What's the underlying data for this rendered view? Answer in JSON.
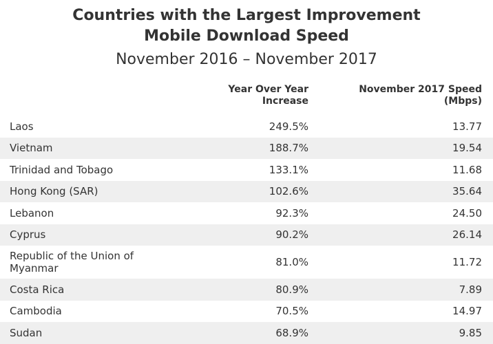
{
  "title": {
    "line1": "Countries with the Largest Improvement",
    "line2": "Mobile Download Speed",
    "subtitle": "November 2016 – November 2017"
  },
  "table": {
    "headers": {
      "increase_line1": "Year Over Year",
      "increase_line2": "Increase",
      "speed_line1": "November 2017 Speed",
      "speed_line2": "(Mbps)"
    },
    "rows": [
      {
        "country": "Laos",
        "increase": "249.5%",
        "speed": "13.77"
      },
      {
        "country": "Vietnam",
        "increase": "188.7%",
        "speed": "19.54"
      },
      {
        "country": "Trinidad and Tobago",
        "increase": "133.1%",
        "speed": "11.68"
      },
      {
        "country": "Hong Kong (SAR)",
        "increase": "102.6%",
        "speed": "35.64"
      },
      {
        "country": "Lebanon",
        "increase": "92.3%",
        "speed": "24.50"
      },
      {
        "country": "Cyprus",
        "increase": "90.2%",
        "speed": "26.14"
      },
      {
        "country": "Republic of the Union of Myanmar",
        "increase": "81.0%",
        "speed": "11.72"
      },
      {
        "country": "Costa Rica",
        "increase": "80.9%",
        "speed": "7.89"
      },
      {
        "country": "Cambodia",
        "increase": "70.5%",
        "speed": "14.97"
      },
      {
        "country": "Sudan",
        "increase": "68.9%",
        "speed": "9.85"
      }
    ]
  },
  "colors": {
    "text": "#333333",
    "row_shade": "#efefef",
    "background": "#ffffff"
  }
}
